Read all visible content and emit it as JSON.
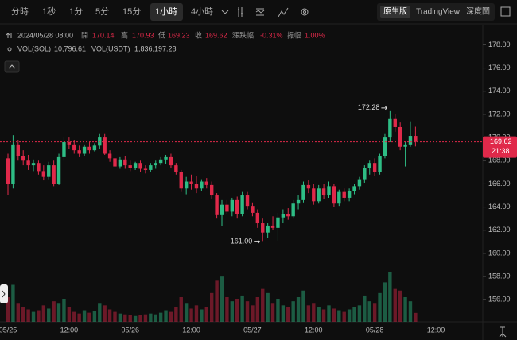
{
  "toolbar": {
    "intervals": [
      "分時",
      "1秒",
      "1分",
      "5分",
      "15分",
      "1小時",
      "4小時"
    ],
    "views": [
      "原生版",
      "TradingView",
      "深度圖"
    ]
  },
  "info": {
    "datetime": "2024/05/28 08:00",
    "fields": [
      {
        "label": "開",
        "value": "170.14"
      },
      {
        "label": "高",
        "value": "170.93"
      },
      {
        "label": "低",
        "value": "169.23"
      },
      {
        "label": "收",
        "value": "169.62"
      },
      {
        "label": "漲跌幅",
        "value": "-0.31%"
      },
      {
        "label": "振幅",
        "value": "1.00%"
      }
    ],
    "volumes": [
      {
        "label": "VOL(SOL)",
        "value": "10,796.61"
      },
      {
        "label": "VOL(USDT)",
        "value": "1,836,197.28"
      }
    ]
  },
  "chart_data": {
    "type": "candlestick",
    "categories": [
      "05/25",
      null,
      null,
      null,
      null,
      null,
      null,
      null,
      null,
      null,
      null,
      null,
      "12:00",
      null,
      null,
      null,
      null,
      null,
      null,
      null,
      null,
      null,
      null,
      null,
      "05/26",
      null,
      null,
      null,
      null,
      null,
      null,
      null,
      null,
      null,
      null,
      null,
      "12:00",
      null,
      null,
      null,
      null,
      null,
      null,
      null,
      null,
      null,
      null,
      null,
      "05/27",
      null,
      null,
      null,
      null,
      null,
      null,
      null,
      null,
      null,
      null,
      null,
      "12:00",
      null,
      null,
      null,
      null,
      null,
      null,
      null,
      null,
      null,
      null,
      null,
      "05/28",
      null,
      null,
      null,
      null,
      null,
      null,
      null,
      null,
      null,
      null,
      null,
      "12:00"
    ],
    "open": [
      168.2,
      166.0,
      169.4,
      168.4,
      168.0,
      167.6,
      167.8,
      167.1,
      166.6,
      167.6,
      166.0,
      168.3,
      169.6,
      169.4,
      168.9,
      168.6,
      169.2,
      168.9,
      169.3,
      170.0,
      168.6,
      168.2,
      167.5,
      168.1,
      167.6,
      167.4,
      167.8,
      167.3,
      167.2,
      167.6,
      167.8,
      168.1,
      168.3,
      167.6,
      167.0,
      165.6,
      166.2,
      166.0,
      165.6,
      166.2,
      165.9,
      165.0,
      163.3,
      164.2,
      163.6,
      164.6,
      163.4,
      165.0,
      164.1,
      163.5,
      162.6,
      161.8,
      162.4,
      162.2,
      163.1,
      163.4,
      163.2,
      164.3,
      164.6,
      165.9,
      165.6,
      164.5,
      165.6,
      165.0,
      165.8,
      164.3,
      165.3,
      164.8,
      165.4,
      165.8,
      166.4,
      167.4,
      167.8,
      167.0,
      168.4,
      170.0,
      171.6,
      170.9,
      169.2,
      169.4,
      170.14,
      null,
      null,
      null,
      null
    ],
    "high": [
      168.6,
      170.2,
      169.8,
      168.9,
      168.5,
      168.1,
      168.0,
      167.6,
      167.9,
      168.0,
      168.6,
      170.0,
      170.0,
      169.8,
      169.3,
      169.4,
      169.6,
      169.5,
      170.3,
      170.3,
      168.9,
      168.6,
      168.3,
      168.4,
      168.0,
      167.9,
      168.0,
      167.6,
      167.8,
      168.0,
      168.3,
      168.5,
      168.6,
      167.8,
      167.2,
      166.6,
      166.8,
      166.7,
      166.4,
      166.5,
      166.2,
      165.2,
      164.6,
      164.6,
      164.8,
      164.9,
      165.3,
      165.3,
      164.4,
      163.8,
      163.0,
      162.6,
      163.2,
      163.5,
      163.8,
      163.9,
      164.6,
      165.0,
      166.2,
      166.3,
      166.0,
      165.9,
      166.0,
      166.2,
      166.0,
      165.5,
      165.6,
      165.6,
      166.0,
      166.6,
      167.6,
      168.0,
      168.2,
      168.6,
      170.3,
      172.28,
      172.0,
      171.3,
      169.6,
      171.4,
      170.93,
      null,
      null,
      null,
      null
    ],
    "low": [
      165.0,
      165.6,
      168.0,
      167.6,
      167.2,
      167.1,
      166.8,
      166.3,
      166.4,
      165.8,
      165.9,
      168.0,
      169.0,
      168.6,
      168.3,
      168.4,
      168.6,
      168.8,
      169.0,
      168.5,
      167.9,
      167.2,
      167.3,
      167.3,
      167.1,
      167.2,
      167.0,
      166.9,
      167.0,
      167.3,
      167.6,
      167.7,
      167.4,
      166.8,
      165.3,
      165.1,
      165.5,
      165.2,
      165.4,
      165.6,
      164.7,
      163.0,
      162.4,
      163.4,
      163.2,
      163.0,
      163.2,
      163.8,
      163.2,
      162.2,
      161.0,
      161.3,
      162.0,
      161.1,
      162.6,
      162.9,
      163.0,
      163.8,
      164.4,
      165.2,
      164.2,
      164.3,
      164.7,
      164.8,
      164.0,
      164.1,
      164.5,
      164.5,
      165.1,
      165.5,
      166.1,
      166.8,
      166.7,
      166.8,
      168.2,
      169.6,
      170.5,
      168.9,
      167.5,
      169.2,
      169.23,
      null,
      null,
      null,
      null
    ],
    "close": [
      166.0,
      169.4,
      168.4,
      168.0,
      167.6,
      167.8,
      167.1,
      166.6,
      167.6,
      166.0,
      168.3,
      169.6,
      169.4,
      168.9,
      168.6,
      169.2,
      168.9,
      169.3,
      170.0,
      168.6,
      168.2,
      167.5,
      168.1,
      167.6,
      167.4,
      167.8,
      167.3,
      167.2,
      167.6,
      167.8,
      168.1,
      168.3,
      167.6,
      167.0,
      165.6,
      166.2,
      166.0,
      165.6,
      166.2,
      165.9,
      165.0,
      163.3,
      164.2,
      163.6,
      164.6,
      163.4,
      165.0,
      164.1,
      163.5,
      162.6,
      161.8,
      162.4,
      162.2,
      163.1,
      163.4,
      163.2,
      164.3,
      164.6,
      165.9,
      165.6,
      164.5,
      165.6,
      165.0,
      165.8,
      164.3,
      165.3,
      164.8,
      165.4,
      165.8,
      166.4,
      167.4,
      167.8,
      167.0,
      168.4,
      170.0,
      171.6,
      170.9,
      169.2,
      169.4,
      170.14,
      169.62,
      null,
      null,
      null,
      null
    ],
    "volume": [
      30000,
      45000,
      22000,
      18000,
      15000,
      12000,
      14000,
      20000,
      16000,
      25000,
      22000,
      28000,
      18000,
      12000,
      10000,
      14000,
      11000,
      13000,
      22000,
      20000,
      15000,
      12000,
      10000,
      9000,
      8000,
      7000,
      8000,
      9000,
      10000,
      9000,
      11000,
      14000,
      12000,
      18000,
      30000,
      22000,
      16000,
      20000,
      15000,
      18000,
      35000,
      50000,
      55000,
      30000,
      25000,
      28000,
      32000,
      25000,
      20000,
      30000,
      40000,
      35000,
      22000,
      28000,
      20000,
      18000,
      25000,
      30000,
      38000,
      20000,
      22000,
      18000,
      15000,
      20000,
      16000,
      14000,
      12000,
      15000,
      18000,
      20000,
      32000,
      25000,
      22000,
      35000,
      48000,
      60000,
      40000,
      38000,
      30000,
      25000,
      10796.61,
      null,
      null,
      null,
      null
    ],
    "ylim": [
      154.1,
      179.4
    ],
    "yticks": [
      {
        "value": 156,
        "label": "156.00"
      },
      {
        "value": 158,
        "label": "158.00"
      },
      {
        "value": 160,
        "label": "160.00"
      },
      {
        "value": 162,
        "label": "162.00"
      },
      {
        "value": 164,
        "label": "164.00"
      },
      {
        "value": 166,
        "label": "166.00"
      },
      {
        "value": 168,
        "label": "168.00"
      },
      {
        "value": 170,
        "label": "170.00"
      },
      {
        "value": 172,
        "label": "172.00"
      },
      {
        "value": 174,
        "label": "174.00"
      },
      {
        "value": 176,
        "label": "176.00"
      },
      {
        "value": 178,
        "label": "178.00"
      }
    ],
    "annotations": [
      {
        "value": 172.28,
        "label": "172.28"
      },
      {
        "value": 161,
        "label": "161.00"
      }
    ],
    "last_price": 169.62,
    "countdown": "21:38",
    "up_color": "#2ebd85",
    "down_color": "#e0294a"
  }
}
